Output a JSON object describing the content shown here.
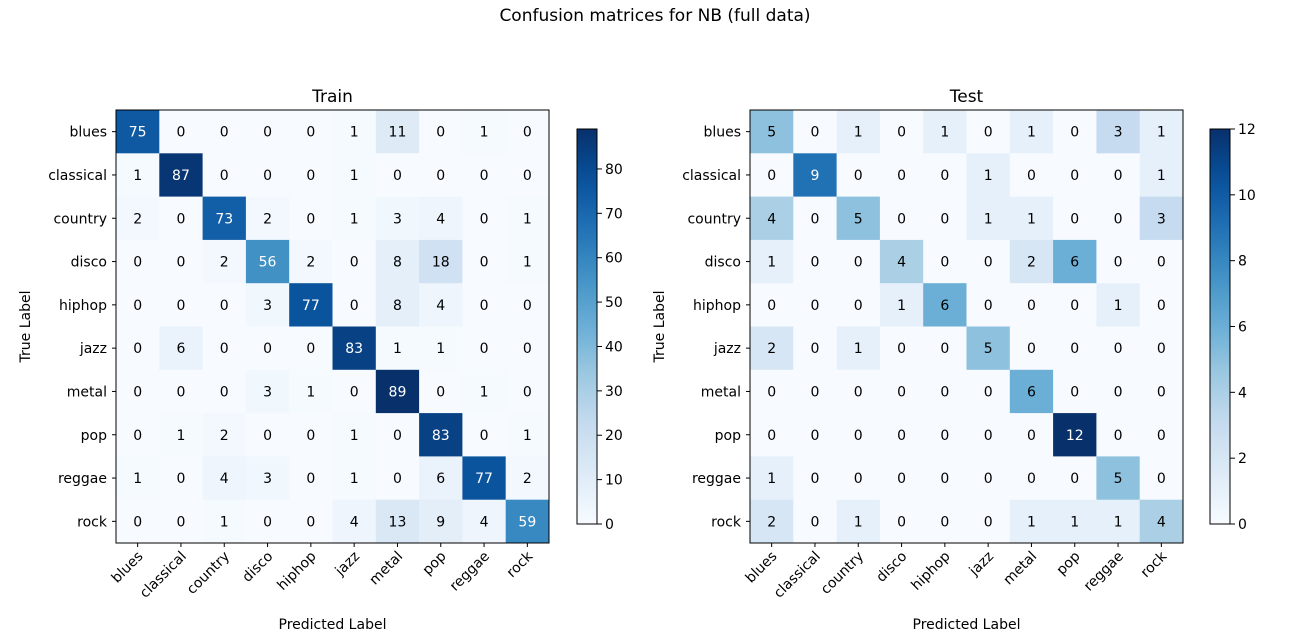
{
  "figure_title": "Confusion matrices for NB (full data)",
  "chart_data": [
    {
      "type": "heatmap",
      "title": "Train",
      "xlabel": "Predicted Label",
      "ylabel": "True Label",
      "labels": [
        "blues",
        "classical",
        "country",
        "disco",
        "hiphop",
        "jazz",
        "metal",
        "pop",
        "reggae",
        "rock"
      ],
      "values": [
        [
          75,
          0,
          0,
          0,
          0,
          1,
          11,
          0,
          1,
          0
        ],
        [
          1,
          87,
          0,
          0,
          0,
          1,
          0,
          0,
          0,
          0
        ],
        [
          2,
          0,
          73,
          2,
          0,
          1,
          3,
          4,
          0,
          1
        ],
        [
          0,
          0,
          2,
          56,
          2,
          0,
          8,
          18,
          0,
          1
        ],
        [
          0,
          0,
          0,
          3,
          77,
          0,
          8,
          4,
          0,
          0
        ],
        [
          0,
          6,
          0,
          0,
          0,
          83,
          1,
          1,
          0,
          0
        ],
        [
          0,
          0,
          0,
          3,
          1,
          0,
          89,
          0,
          1,
          0
        ],
        [
          0,
          1,
          2,
          0,
          0,
          1,
          0,
          83,
          0,
          1
        ],
        [
          1,
          0,
          4,
          3,
          0,
          1,
          0,
          6,
          77,
          2
        ],
        [
          0,
          0,
          1,
          0,
          0,
          4,
          13,
          9,
          4,
          59
        ]
      ],
      "vmin": 0,
      "vmax": 89,
      "colorbar_ticks": [
        0,
        10,
        20,
        30,
        40,
        50,
        60,
        70,
        80
      ],
      "colormap": "Blues"
    },
    {
      "type": "heatmap",
      "title": "Test",
      "xlabel": "Predicted Label",
      "ylabel": "True Label",
      "labels": [
        "blues",
        "classical",
        "country",
        "disco",
        "hiphop",
        "jazz",
        "metal",
        "pop",
        "reggae",
        "rock"
      ],
      "values": [
        [
          5,
          0,
          1,
          0,
          1,
          0,
          1,
          0,
          3,
          1
        ],
        [
          0,
          9,
          0,
          0,
          0,
          1,
          0,
          0,
          0,
          1
        ],
        [
          4,
          0,
          5,
          0,
          0,
          1,
          1,
          0,
          0,
          3
        ],
        [
          1,
          0,
          0,
          4,
          0,
          0,
          2,
          6,
          0,
          0
        ],
        [
          0,
          0,
          0,
          1,
          6,
          0,
          0,
          0,
          1,
          0
        ],
        [
          2,
          0,
          1,
          0,
          0,
          5,
          0,
          0,
          0,
          0
        ],
        [
          0,
          0,
          0,
          0,
          0,
          0,
          6,
          0,
          0,
          0
        ],
        [
          0,
          0,
          0,
          0,
          0,
          0,
          0,
          12,
          0,
          0
        ],
        [
          1,
          0,
          0,
          0,
          0,
          0,
          0,
          0,
          5,
          0
        ],
        [
          2,
          0,
          1,
          0,
          0,
          0,
          1,
          1,
          1,
          4
        ]
      ],
      "vmin": 0,
      "vmax": 12,
      "colorbar_ticks": [
        0,
        2,
        4,
        6,
        8,
        10,
        12
      ],
      "colormap": "Blues"
    }
  ]
}
